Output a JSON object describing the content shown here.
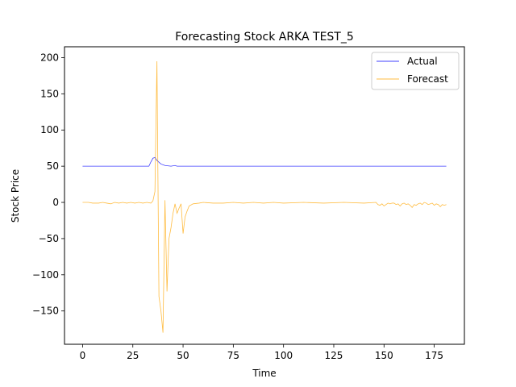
{
  "chart_data": {
    "type": "line",
    "title": "Forecasting Stock ARKA TEST_5",
    "xlabel": "Time",
    "ylabel": "Stock Price",
    "xlim": [
      -9,
      190
    ],
    "ylim": [
      -196,
      215
    ],
    "xticks": [
      0,
      25,
      50,
      75,
      100,
      125,
      150,
      175
    ],
    "yticks": [
      -150,
      -100,
      -50,
      0,
      50,
      100,
      150,
      200
    ],
    "ytick_labels": [
      "−150",
      "−100",
      "−50",
      "0",
      "50",
      "100",
      "150",
      "200"
    ],
    "grid": false,
    "legend_position": "top-right",
    "series": [
      {
        "name": "Actual",
        "color": "#0000ff",
        "points": [
          [
            0,
            50
          ],
          [
            33,
            50
          ],
          [
            34,
            56
          ],
          [
            35,
            61
          ],
          [
            36,
            62
          ],
          [
            37,
            58
          ],
          [
            39,
            53
          ],
          [
            41,
            51
          ],
          [
            44,
            50
          ],
          [
            46,
            51
          ],
          [
            47,
            50
          ],
          [
            60,
            50
          ],
          [
            100,
            50
          ],
          [
            150,
            50
          ],
          [
            181,
            50
          ]
        ]
      },
      {
        "name": "Forecast",
        "color": "#ffa500",
        "points": [
          [
            0,
            0
          ],
          [
            3,
            0
          ],
          [
            5,
            -1
          ],
          [
            8,
            -1
          ],
          [
            10,
            0
          ],
          [
            12,
            -1
          ],
          [
            14,
            -2
          ],
          [
            16,
            0
          ],
          [
            18,
            -1
          ],
          [
            20,
            0
          ],
          [
            22,
            -1
          ],
          [
            24,
            0
          ],
          [
            26,
            -1
          ],
          [
            28,
            0
          ],
          [
            30,
            -1
          ],
          [
            32,
            0
          ],
          [
            34,
            -1
          ],
          [
            35,
            2
          ],
          [
            36,
            15
          ],
          [
            37,
            195
          ],
          [
            38,
            -130
          ],
          [
            39,
            -150
          ],
          [
            40,
            -180
          ],
          [
            41,
            3
          ],
          [
            42,
            -123
          ],
          [
            43,
            -50
          ],
          [
            44,
            -35
          ],
          [
            45,
            -15
          ],
          [
            46,
            -2
          ],
          [
            47,
            -15
          ],
          [
            48,
            -8
          ],
          [
            49,
            -2
          ],
          [
            50,
            -43
          ],
          [
            51,
            -20
          ],
          [
            52,
            -12
          ],
          [
            53,
            -5
          ],
          [
            55,
            -2
          ],
          [
            58,
            -1
          ],
          [
            60,
            0
          ],
          [
            65,
            -1
          ],
          [
            70,
            -1
          ],
          [
            75,
            0
          ],
          [
            80,
            -1
          ],
          [
            85,
            0
          ],
          [
            90,
            -1
          ],
          [
            95,
            0
          ],
          [
            100,
            -1
          ],
          [
            110,
            0
          ],
          [
            120,
            -1
          ],
          [
            130,
            0
          ],
          [
            140,
            -1
          ],
          [
            146,
            0
          ],
          [
            147,
            -3
          ],
          [
            148,
            -4
          ],
          [
            149,
            -2
          ],
          [
            150,
            -5
          ],
          [
            151,
            -3
          ],
          [
            152,
            -1
          ],
          [
            153,
            -2
          ],
          [
            154,
            -1
          ],
          [
            155,
            -1
          ],
          [
            156,
            -3
          ],
          [
            157,
            -2
          ],
          [
            158,
            -5
          ],
          [
            159,
            -2
          ],
          [
            160,
            -1
          ],
          [
            161,
            -3
          ],
          [
            162,
            -2
          ],
          [
            163,
            -4
          ],
          [
            164,
            -7
          ],
          [
            165,
            -3
          ],
          [
            166,
            -4
          ],
          [
            167,
            -2
          ],
          [
            168,
            -1
          ],
          [
            169,
            -3
          ],
          [
            170,
            0
          ],
          [
            171,
            -1
          ],
          [
            172,
            -3
          ],
          [
            173,
            -2
          ],
          [
            174,
            -1
          ],
          [
            175,
            -4
          ],
          [
            176,
            -2
          ],
          [
            177,
            -3
          ],
          [
            178,
            -6
          ],
          [
            179,
            -3
          ],
          [
            180,
            -4
          ],
          [
            181,
            -3
          ]
        ]
      }
    ]
  }
}
